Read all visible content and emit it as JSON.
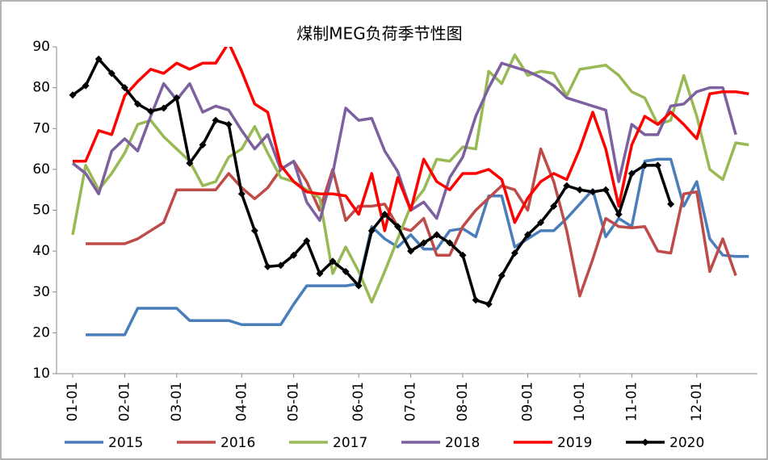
{
  "chart_data": {
    "type": "line",
    "title": "煤制MEG负荷季节性图",
    "categories": [
      "01-01",
      null,
      null,
      null,
      "02-01",
      null,
      null,
      null,
      "03-01",
      null,
      null,
      null,
      null,
      "04-01",
      null,
      null,
      null,
      "05-01",
      null,
      null,
      null,
      null,
      "06-01",
      null,
      null,
      null,
      "07-01",
      null,
      null,
      null,
      "08-01",
      null,
      null,
      null,
      null,
      "09-01",
      null,
      null,
      null,
      "10-01",
      null,
      null,
      null,
      "11-01",
      null,
      null,
      null,
      null,
      "12-01",
      null,
      null,
      null,
      null
    ],
    "ylim": [
      10,
      90
    ],
    "yticks": [
      10,
      20,
      30,
      40,
      50,
      60,
      70,
      80,
      90
    ],
    "grid": false,
    "legend": "bottom",
    "series": [
      {
        "name": "2015",
        "color": "#4a7ebb",
        "values": [
          null,
          19.5,
          19.5,
          19.5,
          19.5,
          26,
          26,
          26,
          26,
          23,
          23,
          23,
          23,
          22,
          22,
          22,
          22,
          27,
          31.5,
          31.5,
          31.5,
          31.5,
          32,
          46,
          43,
          41,
          44,
          40.5,
          40.5,
          45,
          45.5,
          43.5,
          53.5,
          53.5,
          41,
          43,
          45,
          45,
          48,
          51.5,
          55,
          43.5,
          48,
          46,
          62,
          62.5,
          62.5,
          51,
          57,
          43,
          39,
          38.7,
          38.7
        ]
      },
      {
        "name": "2016",
        "color": "#be4b48",
        "values": [
          null,
          41.8,
          41.8,
          41.8,
          41.8,
          43,
          45,
          47,
          55,
          55,
          55,
          55,
          59,
          55.5,
          52.8,
          55.5,
          60,
          62,
          57,
          50,
          60,
          47.5,
          51,
          51,
          51.5,
          46,
          45,
          48,
          39,
          39,
          46,
          50,
          53,
          56,
          55,
          50,
          65,
          57,
          45,
          29,
          38,
          48,
          46,
          45.7,
          46,
          40,
          39.5,
          54,
          54.5,
          35,
          43,
          34,
          null
        ]
      },
      {
        "name": "2017",
        "color": "#98b954",
        "values": [
          44,
          61,
          55,
          59,
          64,
          71,
          72,
          68,
          65,
          62,
          56,
          57,
          63,
          65,
          70.5,
          64,
          58,
          57,
          55,
          53,
          34.5,
          41,
          35,
          27.5,
          35,
          43,
          51,
          55,
          62.5,
          62,
          65.5,
          65,
          84,
          81,
          88,
          83,
          84,
          83.5,
          78,
          84.5,
          85,
          85.5,
          83,
          79,
          77.5,
          71,
          72,
          83,
          73,
          60,
          57.5,
          66.5,
          66
        ]
      },
      {
        "name": "2018",
        "color": "#7d60a0",
        "values": [
          61.5,
          59,
          54,
          64.5,
          67.5,
          64.5,
          73,
          81,
          77,
          81,
          74,
          75.5,
          74.5,
          69.5,
          65,
          68.5,
          60,
          62,
          52,
          47.5,
          59,
          75,
          72,
          72.5,
          64.5,
          59.5,
          50,
          52,
          48,
          58,
          63,
          73,
          80,
          86,
          85,
          84,
          82.5,
          80.5,
          77.5,
          76.5,
          75.5,
          74.5,
          57,
          71,
          68.5,
          68.5,
          75.5,
          76,
          79,
          80,
          80,
          68.5,
          null
        ]
      },
      {
        "name": "2019",
        "color": "#ff0000",
        "values": [
          62,
          62,
          69.5,
          68.5,
          78,
          81.5,
          84.5,
          83.5,
          86,
          84.5,
          86,
          86,
          91,
          84,
          76,
          74,
          61,
          57,
          54.5,
          54,
          54,
          53.5,
          49,
          59,
          45,
          58,
          50,
          62.5,
          57,
          55,
          59,
          59,
          60,
          57.5,
          47,
          53,
          57,
          59,
          57.5,
          65,
          74,
          65,
          51,
          66,
          73,
          71,
          74,
          71,
          67.5,
          78.5,
          79,
          79,
          78.5
        ]
      },
      {
        "name": "2020",
        "color": "#000000",
        "marker": "diamond",
        "values": [
          78.2,
          80.5,
          87,
          83.5,
          80,
          76,
          74.2,
          75,
          77.5,
          61.5,
          66,
          72,
          71,
          54,
          45,
          36.2,
          36.5,
          39,
          42.5,
          34.5,
          37.5,
          35,
          31.5,
          45,
          49,
          46,
          40,
          42,
          44,
          42,
          39,
          28,
          27,
          34,
          39.5,
          44,
          47,
          51,
          56,
          55,
          54.5,
          55,
          49,
          59,
          61,
          61,
          51.5,
          null,
          null,
          null,
          null,
          null,
          null
        ]
      }
    ]
  }
}
